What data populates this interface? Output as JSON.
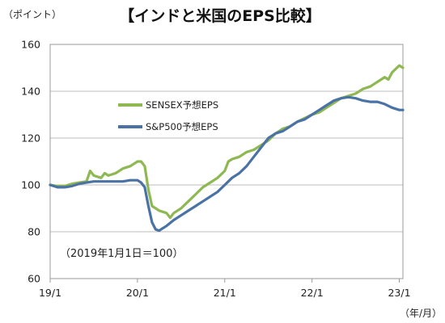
{
  "chart_data": {
    "type": "line",
    "title": "【インドと米国のEPS比較】",
    "unit_label": "（ポイント）",
    "xunit_label": "（年/月）",
    "note": "（2019年1月1日＝100）",
    "ylim": [
      60,
      160
    ],
    "yticks": [
      60,
      80,
      100,
      120,
      140,
      160
    ],
    "xlim": [
      0,
      48.5
    ],
    "xticks": [
      {
        "pos": 0,
        "label": "19/1"
      },
      {
        "pos": 12,
        "label": "20/1"
      },
      {
        "pos": 24,
        "label": "21/1"
      },
      {
        "pos": 36,
        "label": "22/1"
      },
      {
        "pos": 48,
        "label": "23/1"
      }
    ],
    "grid": "horizontal",
    "legend_position": "center-left",
    "series": [
      {
        "name": "SENSEX予想EPS",
        "color": "#8DB852",
        "x": [
          0,
          1,
          2,
          3,
          4,
          5,
          5.5,
          6,
          7,
          7.5,
          8,
          9,
          10,
          11,
          12,
          12.5,
          13,
          13.5,
          14,
          14.5,
          15,
          16,
          16.5,
          17,
          18,
          19,
          20,
          21,
          22,
          23,
          24,
          24.5,
          25,
          26,
          27,
          28,
          29,
          30,
          31,
          32,
          33,
          34,
          35,
          36,
          37,
          38,
          39,
          40,
          41,
          42,
          43,
          44,
          45,
          46,
          46.5,
          47,
          48,
          48.5
        ],
        "y": [
          100,
          99.5,
          99.5,
          100.5,
          101,
          101.5,
          106,
          104,
          103,
          105,
          104,
          105,
          107,
          108,
          110,
          110,
          108,
          98,
          91,
          90,
          89,
          88,
          86,
          88,
          90,
          93,
          96,
          99,
          101,
          103,
          106,
          110,
          111,
          112,
          114,
          115,
          117,
          119,
          122,
          124,
          125,
          127,
          128.5,
          130,
          131,
          133,
          135,
          137,
          138,
          139,
          141,
          142,
          144,
          146,
          145,
          148,
          151,
          150
        ]
      },
      {
        "name": "S&P500予想EPS",
        "color": "#4A72A5",
        "x": [
          0,
          1,
          2,
          3,
          4,
          5,
          6,
          7,
          8,
          9,
          10,
          11,
          12,
          12.5,
          13,
          13.5,
          14,
          14.5,
          15,
          15.5,
          16,
          17,
          18,
          19,
          20,
          21,
          22,
          23,
          24,
          25,
          26,
          27,
          28,
          29,
          30,
          31,
          32,
          33,
          34,
          35,
          36,
          37,
          38,
          39,
          40,
          41,
          42,
          43,
          44,
          45,
          46,
          47,
          48,
          48.5
        ],
        "y": [
          100,
          99,
          99,
          99.5,
          100.5,
          101,
          101.5,
          101.5,
          101.5,
          101.5,
          101.5,
          102,
          102,
          101,
          99,
          91,
          84,
          81,
          80.5,
          81.5,
          82.5,
          85,
          87,
          89,
          91,
          93,
          95,
          97,
          100,
          103,
          105,
          108,
          112,
          116,
          120,
          122,
          123,
          125,
          127,
          128,
          130,
          132,
          134,
          136,
          137,
          137.5,
          137,
          136,
          135.5,
          135.5,
          134.5,
          133,
          132,
          132
        ]
      }
    ]
  }
}
